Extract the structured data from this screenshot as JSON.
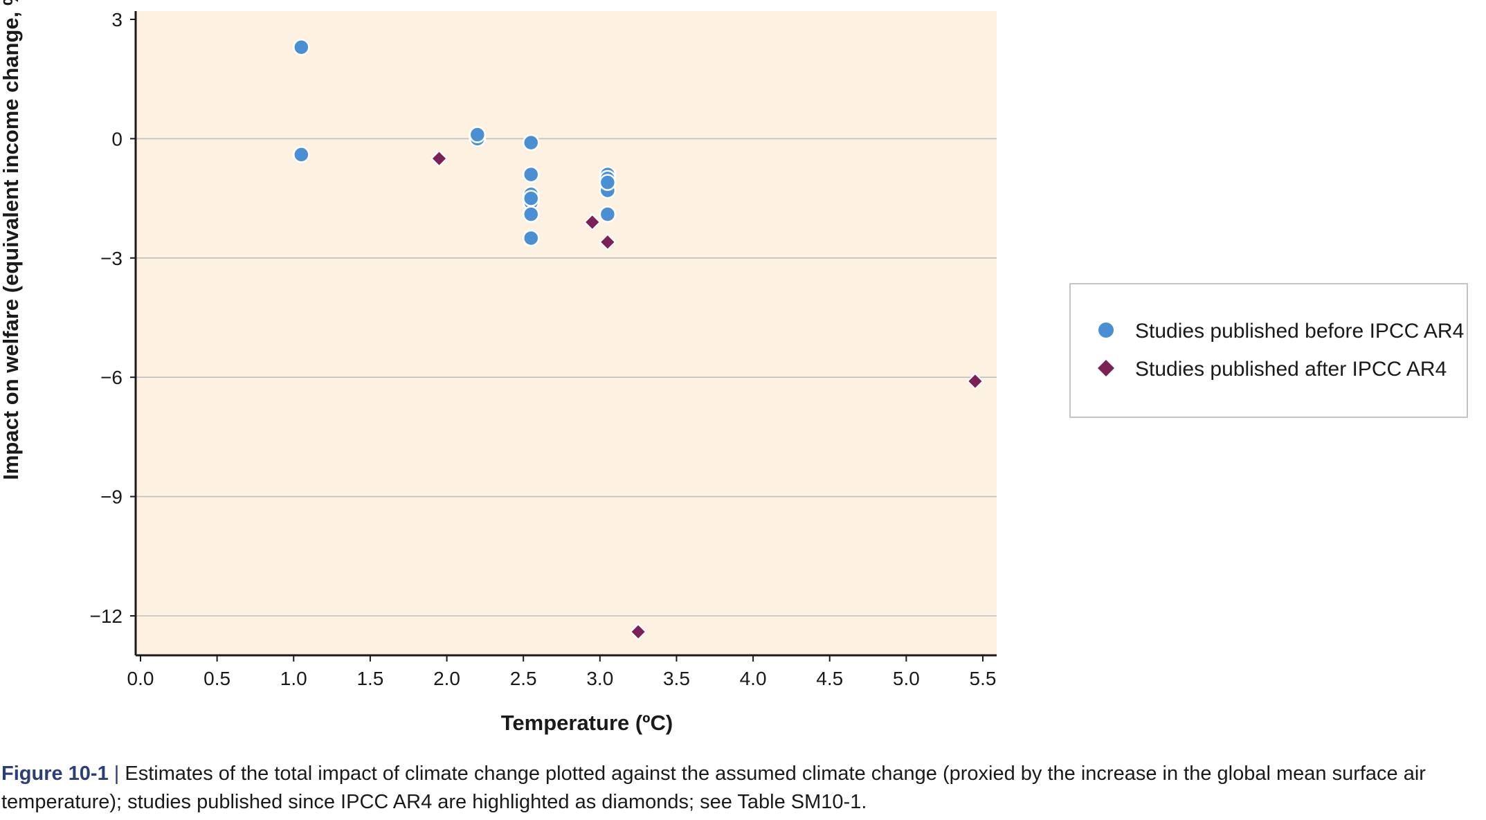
{
  "chart_data": {
    "type": "scatter",
    "title": "",
    "xlabel": "Temperature (ºC)",
    "ylabel": "Impact on welfare (equivalent income change, %)",
    "xlim": [
      0,
      5.5
    ],
    "ylim": [
      -13,
      3
    ],
    "xticks": [
      0.0,
      0.5,
      1.0,
      1.5,
      2.0,
      2.5,
      3.0,
      3.5,
      4.0,
      4.5,
      5.0,
      5.5
    ],
    "xtick_labels": [
      "0.0",
      "0.5",
      "1.0",
      "1.5",
      "2.0",
      "2.5",
      "3.0",
      "3.5",
      "4.0",
      "4.5",
      "5.0",
      "5.5"
    ],
    "yticks": [
      3,
      0,
      -3,
      -6,
      -9,
      -12
    ],
    "ytick_labels": [
      "3",
      "0",
      "−3",
      "−6",
      "−9",
      "−12"
    ],
    "grid": true,
    "background": "#fdf1e1",
    "legend_position": "right",
    "series": [
      {
        "name": "Studies published before IPCC AR4",
        "marker": "circle",
        "color": "#4a8fd4",
        "points": [
          [
            1.05,
            2.3
          ],
          [
            1.05,
            -0.4
          ],
          [
            2.2,
            0.0
          ],
          [
            2.2,
            0.1
          ],
          [
            2.55,
            -0.1
          ],
          [
            2.55,
            -0.9
          ],
          [
            2.55,
            -1.4
          ],
          [
            2.55,
            -1.6
          ],
          [
            2.55,
            -1.9
          ],
          [
            2.55,
            -1.5
          ],
          [
            2.55,
            -2.5
          ],
          [
            3.05,
            -0.9
          ],
          [
            3.05,
            -1.0
          ],
          [
            3.05,
            -1.3
          ],
          [
            3.05,
            -1.1
          ],
          [
            3.05,
            -1.9
          ]
        ]
      },
      {
        "name": "Studies published after IPCC AR4",
        "marker": "diamond",
        "color": "#7b2158",
        "points": [
          [
            1.95,
            -0.5
          ],
          [
            2.95,
            -2.1
          ],
          [
            3.05,
            -2.6
          ],
          [
            3.25,
            -12.4
          ],
          [
            5.45,
            -6.1
          ]
        ]
      }
    ]
  },
  "caption": {
    "label": "Figure 10-1",
    "separator": " | ",
    "text": "Estimates of the total impact of climate change plotted against the assumed climate change (proxied by the increase in the global mean surface air temperature); studies published since IPCC AR4 are highlighted as diamonds; see Table SM10-1."
  }
}
